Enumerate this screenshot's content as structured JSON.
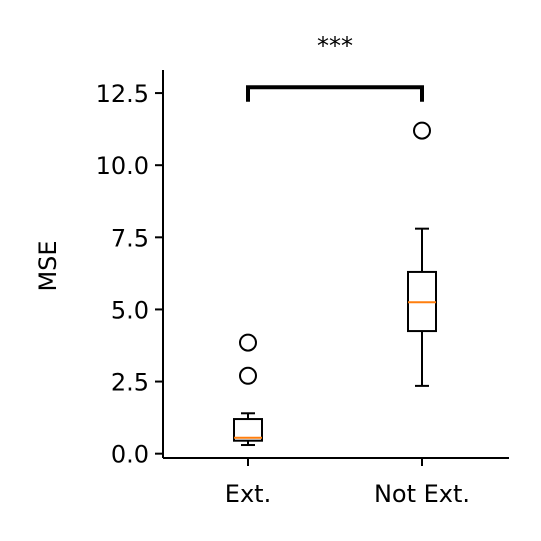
{
  "chart_data": {
    "type": "box",
    "title": "",
    "xlabel": "",
    "ylabel": "MSE",
    "ylim": [
      -0.15,
      13.3
    ],
    "yticks": [
      {
        "value": 0.0,
        "label": "0.0"
      },
      {
        "value": 2.5,
        "label": "2.5"
      },
      {
        "value": 5.0,
        "label": "5.0"
      },
      {
        "value": 7.5,
        "label": "7.5"
      },
      {
        "value": 10.0,
        "label": "10.0"
      },
      {
        "value": 12.5,
        "label": "12.5"
      }
    ],
    "categories": [
      "Ext.",
      "Not Ext."
    ],
    "boxes": [
      {
        "category": "Ext.",
        "whisker_low": 0.3,
        "q1": 0.45,
        "median": 0.55,
        "q3": 1.2,
        "whisker_high": 1.4,
        "outliers": [
          2.7,
          3.85
        ]
      },
      {
        "category": "Not Ext.",
        "whisker_low": 2.35,
        "q1": 4.25,
        "median": 5.25,
        "q3": 6.3,
        "whisker_high": 7.8,
        "outliers": [
          11.2
        ]
      }
    ],
    "significance": {
      "between": [
        "Ext.",
        "Not Ext."
      ],
      "label": "***",
      "y": 12.7,
      "drop": 12.2
    },
    "grid": false,
    "colors": {
      "box": "#000000",
      "median": "#ff7f0e",
      "axis": "#000000"
    }
  }
}
